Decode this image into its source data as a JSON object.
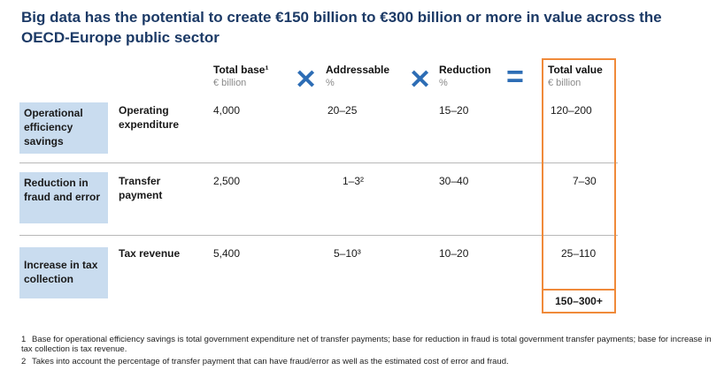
{
  "title": "Big data has the potential to create €150 billion to €300 billion or more in value across the OECD-Europe public sector",
  "headers": {
    "total_base": {
      "label": "Total base¹",
      "unit": "€ billion"
    },
    "addressable": {
      "label": "Addressable",
      "unit": "%"
    },
    "reduction": {
      "label": "Reduction",
      "unit": "%"
    },
    "total_value": {
      "label": "Total value",
      "unit": "€ billion"
    }
  },
  "operators": {
    "times": "✕",
    "equals": "="
  },
  "rows": [
    {
      "category": "Operational efficiency savings",
      "item": "Operating expenditure",
      "base": "4,000",
      "addressable": "20–25",
      "reduction": "15–20",
      "value": "120–200"
    },
    {
      "category": "Reduction in fraud and error",
      "item": "Transfer payment",
      "base": "2,500",
      "addressable": "1–3²",
      "reduction": "30–40",
      "value": "7–30"
    },
    {
      "category": "Increase in tax collection",
      "item": "Tax revenue",
      "base": "5,400",
      "addressable": "5–10³",
      "reduction": "10–20",
      "value": "25–110"
    }
  ],
  "grand_total": "150–300+",
  "footnotes": [
    {
      "n": "1",
      "text": "Base for operational efficiency savings is total government expenditure net of transfer payments; base for reduction in fraud is total government transfer payments; base for increase in tax collection is tax revenue."
    },
    {
      "n": "2",
      "text": "Takes into account the percentage of transfer payment that can have fraud/error as well as the estimated cost of error and fraud."
    }
  ],
  "colors": {
    "title": "#1c3a66",
    "operator": "#2d6db5",
    "category_fill": "#c9dcef",
    "total_border": "#f08a3a"
  }
}
